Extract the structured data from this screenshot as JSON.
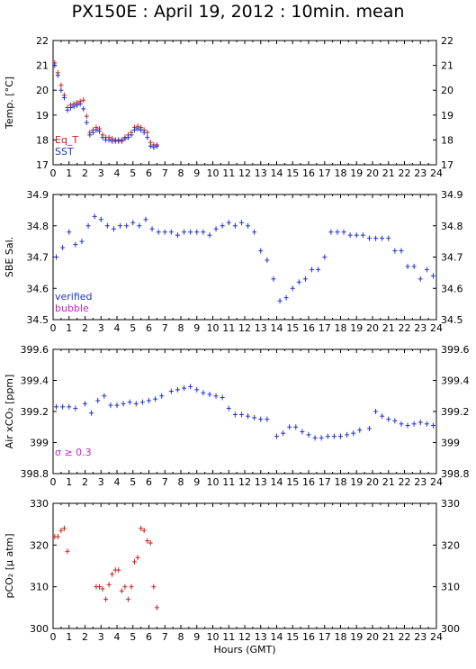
{
  "title": "PX150E : April 19, 2012 : 10min. mean",
  "colors": {
    "red": "#cc2222",
    "blue": "#2233cc",
    "magenta": "#cc22cc",
    "axis": "#000000"
  },
  "chart_data": [
    {
      "type": "scatter",
      "ylabel": "Temp. [°C]",
      "ylim": [
        17,
        22
      ],
      "yticks": [
        17,
        18,
        19,
        20,
        21,
        22
      ],
      "xlim": [
        0,
        24
      ],
      "xticks": [
        0,
        1,
        2,
        3,
        4,
        5,
        6,
        7,
        8,
        9,
        10,
        11,
        12,
        13,
        14,
        15,
        16,
        17,
        18,
        19,
        20,
        21,
        22,
        23,
        24
      ],
      "show_xtick_labels": true,
      "xlabel": "",
      "legend": [
        "Eq_T",
        "SST"
      ],
      "series": [
        {
          "name": "Eq_T",
          "color": "#cc2222",
          "x": [
            0.1,
            0.3,
            0.5,
            0.7,
            0.9,
            1.1,
            1.3,
            1.5,
            1.7,
            1.9,
            2.1,
            2.3,
            2.5,
            2.7,
            2.9,
            3.1,
            3.3,
            3.5,
            3.7,
            3.9,
            4.1,
            4.3,
            4.5,
            4.7,
            4.9,
            5.1,
            5.3,
            5.5,
            5.7,
            5.9,
            6.1,
            6.3,
            6.5
          ],
          "y": [
            21.1,
            20.7,
            20.2,
            19.8,
            19.3,
            19.4,
            19.45,
            19.5,
            19.55,
            19.6,
            18.95,
            18.3,
            18.4,
            18.5,
            18.45,
            18.2,
            18.1,
            18.1,
            18.05,
            18.0,
            18.0,
            18.0,
            18.1,
            18.2,
            18.3,
            18.5,
            18.55,
            18.5,
            18.4,
            18.3,
            17.9,
            17.8,
            17.8
          ]
        },
        {
          "name": "SST",
          "color": "#2233cc",
          "x": [
            0.1,
            0.3,
            0.5,
            0.7,
            0.9,
            1.1,
            1.3,
            1.5,
            1.7,
            1.9,
            2.1,
            2.3,
            2.5,
            2.7,
            2.9,
            3.1,
            3.3,
            3.5,
            3.7,
            3.9,
            4.1,
            4.3,
            4.5,
            4.7,
            4.9,
            5.1,
            5.3,
            5.5,
            5.7,
            5.9,
            6.1,
            6.3,
            6.5
          ],
          "y": [
            21.0,
            20.6,
            20.0,
            19.7,
            19.2,
            19.3,
            19.35,
            19.4,
            19.45,
            19.25,
            18.7,
            18.2,
            18.3,
            18.4,
            18.35,
            18.1,
            18.0,
            18.0,
            17.95,
            17.95,
            17.95,
            17.95,
            18.05,
            18.1,
            18.2,
            18.4,
            18.45,
            18.4,
            18.3,
            18.1,
            17.75,
            17.7,
            17.75
          ]
        }
      ]
    },
    {
      "type": "scatter",
      "ylabel": "SBE Sal.",
      "ylim": [
        34.5,
        34.9
      ],
      "yticks": [
        34.5,
        34.6,
        34.7,
        34.8,
        34.9
      ],
      "xlim": [
        0,
        24
      ],
      "xticks": [
        0,
        1,
        2,
        3,
        4,
        5,
        6,
        7,
        8,
        9,
        10,
        11,
        12,
        13,
        14,
        15,
        16,
        17,
        18,
        19,
        20,
        21,
        22,
        23,
        24
      ],
      "show_xtick_labels": true,
      "xlabel": "",
      "legend": [
        "verified",
        "bubble"
      ],
      "series": [
        {
          "name": "verified",
          "color": "#2233cc",
          "x": [
            0.2,
            0.6,
            1.0,
            1.4,
            1.8,
            2.2,
            2.6,
            3.0,
            3.4,
            3.8,
            4.2,
            4.6,
            5.0,
            5.4,
            5.8,
            6.2,
            6.6,
            7.0,
            7.4,
            7.8,
            8.2,
            8.6,
            9.0,
            9.4,
            9.8,
            10.2,
            10.6,
            11.0,
            11.4,
            11.8,
            12.2,
            12.6,
            13.0,
            13.4,
            13.8,
            14.2,
            14.6,
            15.0,
            15.4,
            15.8,
            16.2,
            16.6,
            17.0,
            17.4,
            17.8,
            18.2,
            18.6,
            19.0,
            19.4,
            19.8,
            20.2,
            20.6,
            21.0,
            21.4,
            21.8,
            22.2,
            22.6,
            23.0,
            23.4,
            23.8
          ],
          "y": [
            34.7,
            34.73,
            34.78,
            34.74,
            34.75,
            34.8,
            34.83,
            34.82,
            34.8,
            34.79,
            34.8,
            34.8,
            34.81,
            34.8,
            34.82,
            34.79,
            34.78,
            34.78,
            34.78,
            34.77,
            34.78,
            34.78,
            34.78,
            34.78,
            34.77,
            34.79,
            34.8,
            34.81,
            34.8,
            34.81,
            34.8,
            34.78,
            34.72,
            34.69,
            34.63,
            34.56,
            34.57,
            34.6,
            34.62,
            34.63,
            34.66,
            34.66,
            34.7,
            34.78,
            34.78,
            34.78,
            34.77,
            34.77,
            34.77,
            34.76,
            34.76,
            34.76,
            34.76,
            34.72,
            34.72,
            34.67,
            34.67,
            34.63,
            34.66,
            34.64
          ]
        }
      ]
    },
    {
      "type": "scatter",
      "ylabel": "Air xCO₂ [ppm]",
      "ylim": [
        398.8,
        399.6
      ],
      "yticks": [
        398.8,
        399.0,
        399.2,
        399.4,
        399.6
      ],
      "ytick_labels": [
        "398.8",
        "399",
        "399.2",
        "399.4",
        "399.6"
      ],
      "xlim": [
        0,
        24
      ],
      "xticks": [
        0,
        1,
        2,
        3,
        4,
        5,
        6,
        7,
        8,
        9,
        10,
        11,
        12,
        13,
        14,
        15,
        16,
        17,
        18,
        19,
        20,
        21,
        22,
        23,
        24
      ],
      "show_xtick_labels": true,
      "xlabel": "",
      "annotation": "σ ≥ 0.3",
      "series": [
        {
          "name": "",
          "color": "#2233cc",
          "x": [
            0.2,
            0.6,
            1.0,
            1.4,
            2.0,
            2.4,
            2.8,
            3.2,
            3.6,
            4.0,
            4.4,
            4.8,
            5.2,
            5.6,
            6.0,
            6.4,
            6.8,
            7.4,
            7.8,
            8.2,
            8.6,
            9.0,
            9.4,
            9.8,
            10.2,
            10.6,
            11.0,
            11.4,
            11.8,
            12.2,
            12.6,
            13.0,
            13.4,
            14.0,
            14.4,
            14.8,
            15.2,
            15.6,
            16.0,
            16.4,
            16.8,
            17.2,
            17.6,
            18.0,
            18.4,
            18.8,
            19.2,
            19.8,
            20.2,
            20.6,
            21.0,
            21.4,
            21.8,
            22.2,
            22.6,
            23.0,
            23.4,
            23.8
          ],
          "y": [
            399.23,
            399.23,
            399.23,
            399.22,
            399.25,
            399.19,
            399.27,
            399.3,
            399.24,
            399.24,
            399.25,
            399.26,
            399.25,
            399.26,
            399.27,
            399.28,
            399.3,
            399.33,
            399.34,
            399.35,
            399.36,
            399.34,
            399.32,
            399.31,
            399.3,
            399.29,
            399.22,
            399.18,
            399.18,
            399.17,
            399.16,
            399.15,
            399.15,
            399.04,
            399.06,
            399.1,
            399.1,
            399.07,
            399.05,
            399.03,
            399.03,
            399.04,
            399.04,
            399.04,
            399.05,
            399.06,
            399.08,
            399.09,
            399.2,
            399.17,
            399.15,
            399.14,
            399.12,
            399.11,
            399.12,
            399.13,
            399.12,
            399.11
          ]
        }
      ]
    },
    {
      "type": "scatter",
      "ylabel": "pCO₂ [µ atm]",
      "ylim": [
        300,
        330
      ],
      "yticks": [
        300,
        310,
        320,
        330
      ],
      "xlim": [
        0,
        24
      ],
      "xticks": [
        0,
        1,
        2,
        3,
        4,
        5,
        6,
        7,
        8,
        9,
        10,
        11,
        12,
        13,
        14,
        15,
        16,
        17,
        18,
        19,
        20,
        21,
        22,
        23,
        24
      ],
      "show_xtick_labels": true,
      "xlabel": "Hours (GMT)",
      "series": [
        {
          "name": "",
          "color": "#cc2222",
          "x": [
            0.1,
            0.3,
            0.5,
            0.7,
            0.9,
            2.7,
            2.9,
            3.1,
            3.3,
            3.5,
            3.7,
            3.9,
            4.1,
            4.3,
            4.5,
            4.7,
            4.9,
            5.1,
            5.3,
            5.5,
            5.7,
            5.9,
            6.1,
            6.3,
            6.5
          ],
          "y": [
            322,
            322,
            323.5,
            324,
            318.5,
            310,
            310,
            309.5,
            307,
            310.5,
            313,
            314,
            314,
            309,
            310,
            307,
            310,
            316,
            317,
            324,
            323.5,
            321,
            320.5,
            310,
            305
          ]
        }
      ]
    }
  ]
}
